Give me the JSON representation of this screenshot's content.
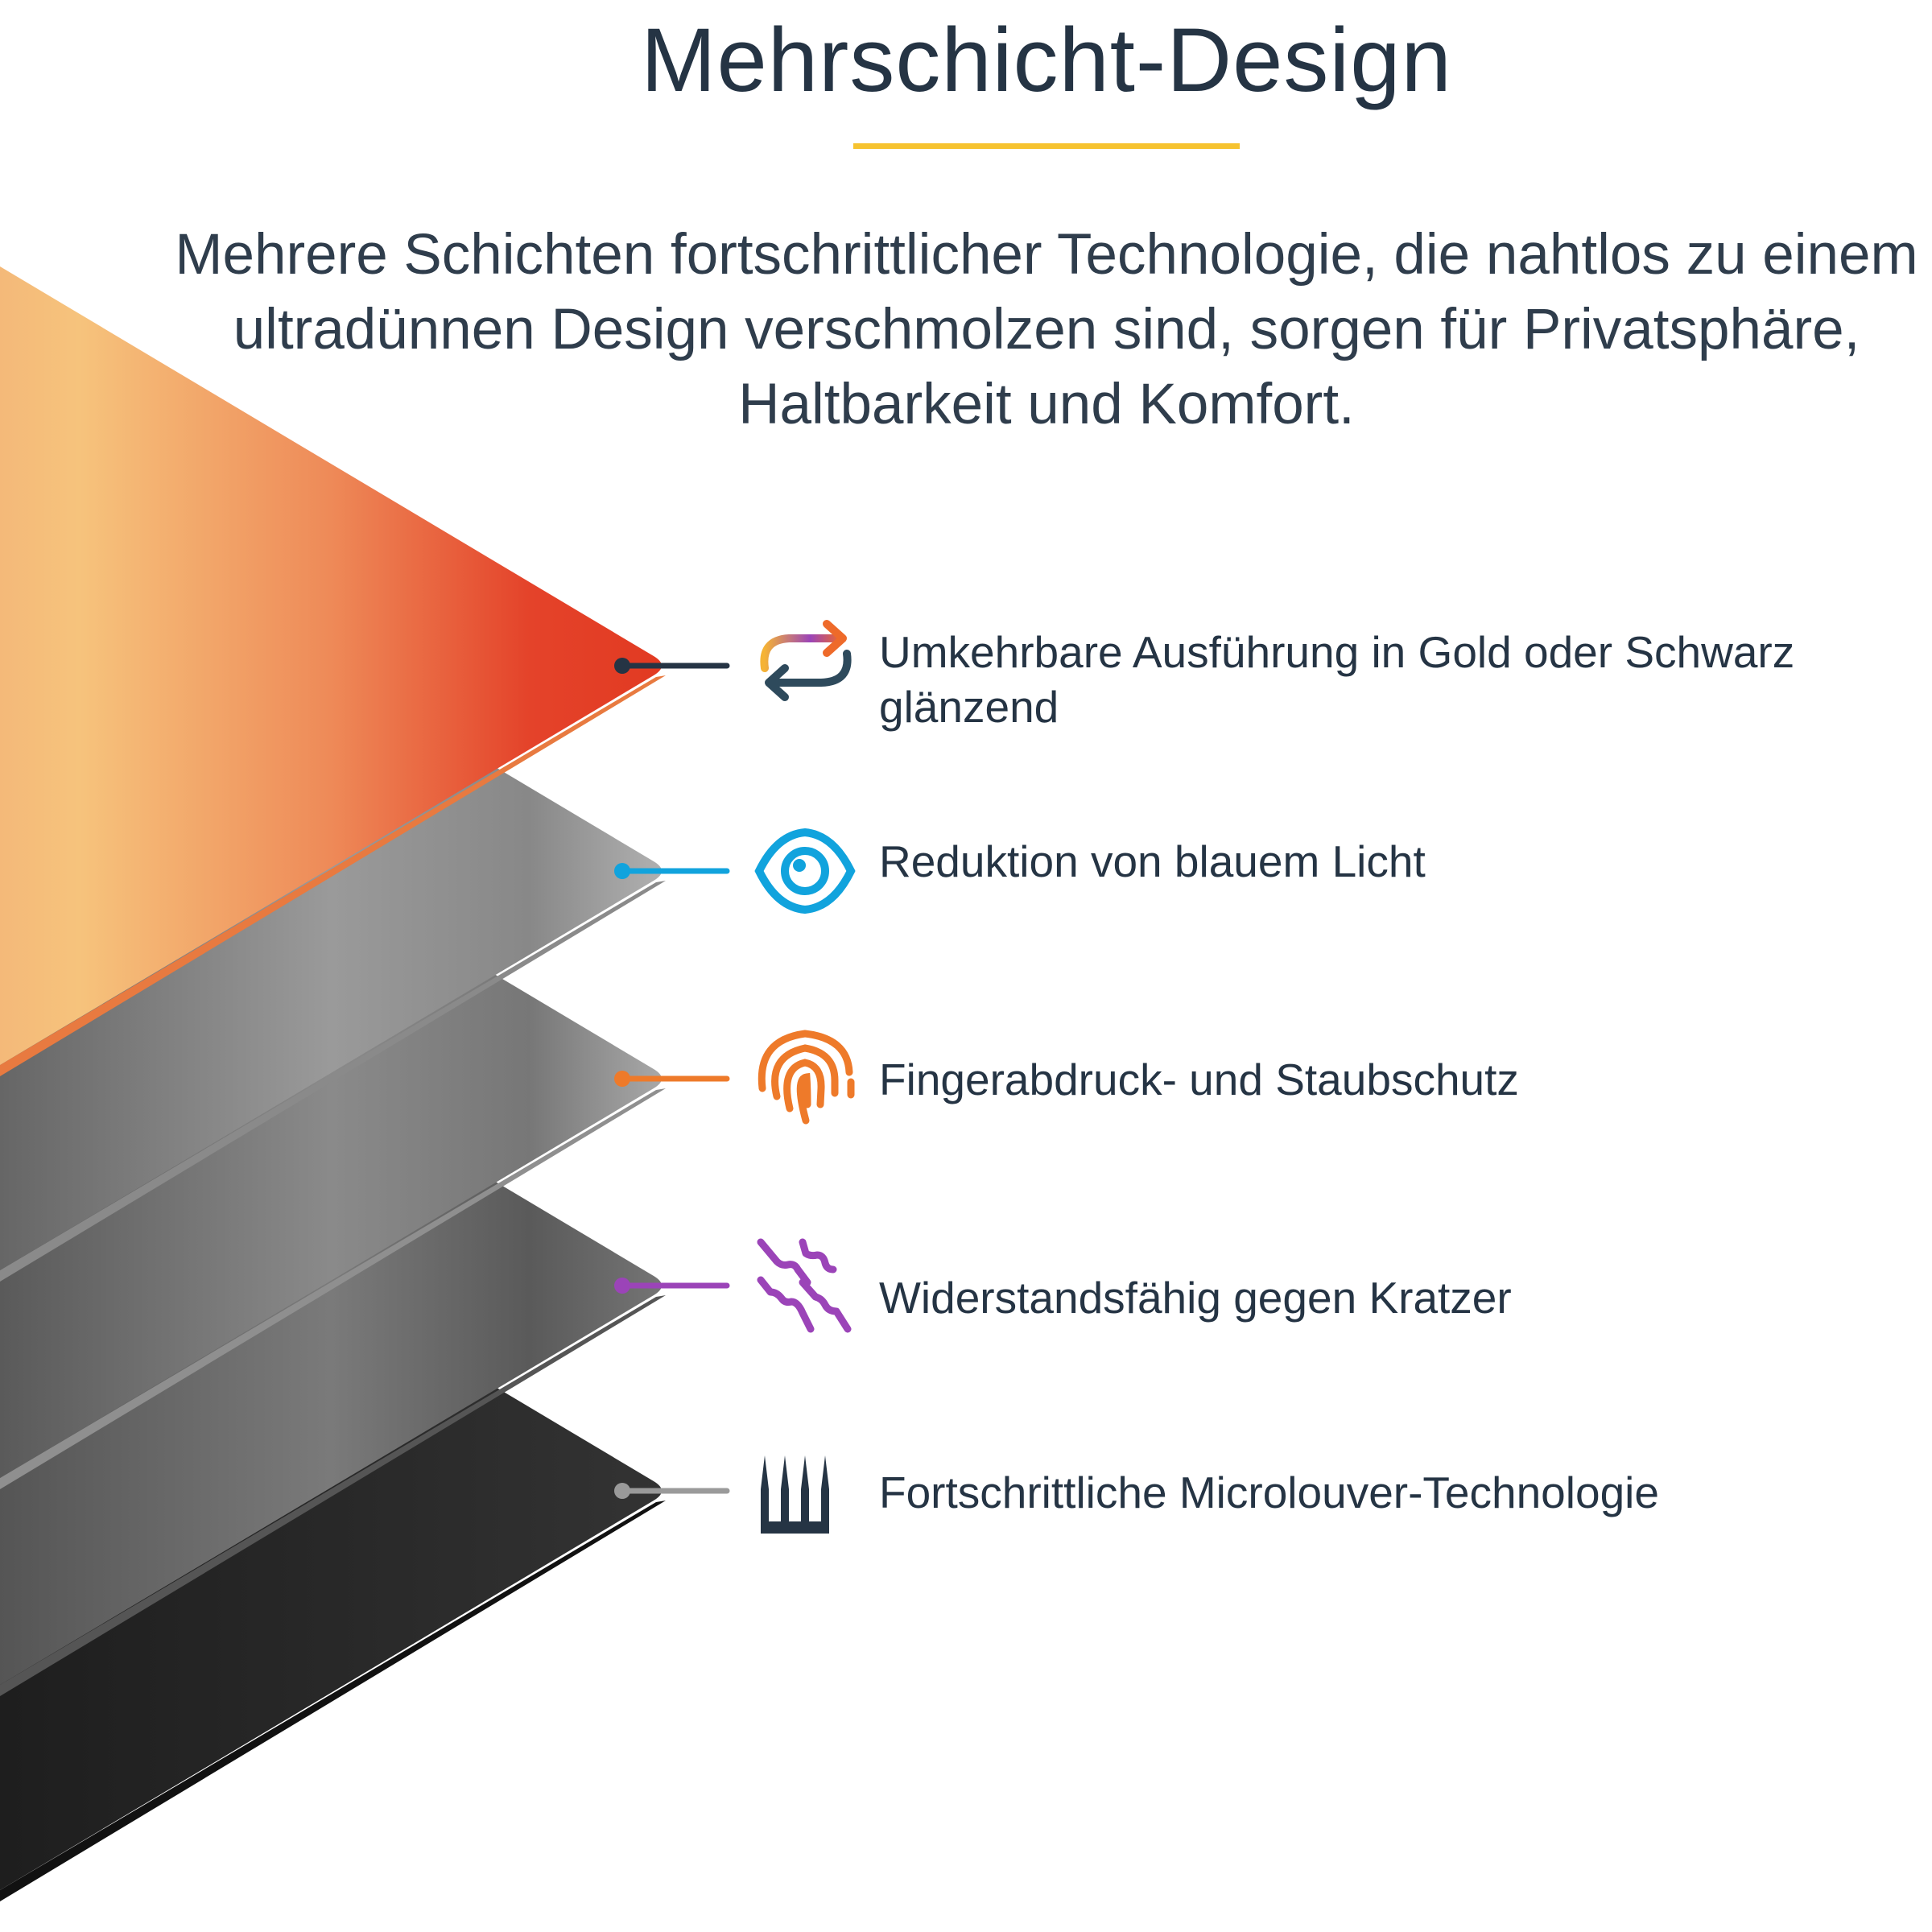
{
  "header": {
    "title": "Mehrschicht-Design",
    "subtitle_lines": [
      "Mehrere Schichten fortschrittlicher Technologie, die nahtlos zu einem",
      "ultradünnen Design verschmolzen sind, sorgen für Privatsphäre,",
      "Haltbarkeit und Komfort."
    ],
    "accent_color": "#f6c330"
  },
  "features": [
    {
      "icon": "reverse-arrows-icon",
      "lines": [
        "Umkehrbare Ausführung in Gold oder Schwarz",
        "glänzend"
      ],
      "color": "#2e4050"
    },
    {
      "icon": "eye-icon",
      "lines": [
        "Reduktion von blauem Licht"
      ],
      "color": "#11a3dd"
    },
    {
      "icon": "fingerprint-icon",
      "lines": [
        "Fingerabdruck- und Staubschutz"
      ],
      "color": "#ee7a2a"
    },
    {
      "icon": "scratches-icon",
      "lines": [
        "Widerstandsfähig gegen Kratzer"
      ],
      "color": "#9b44b8"
    },
    {
      "icon": "microlouver-icon",
      "lines": [
        "Fortschrittliche Microlouver-Technologie"
      ],
      "color": "#9a9a9a"
    }
  ]
}
